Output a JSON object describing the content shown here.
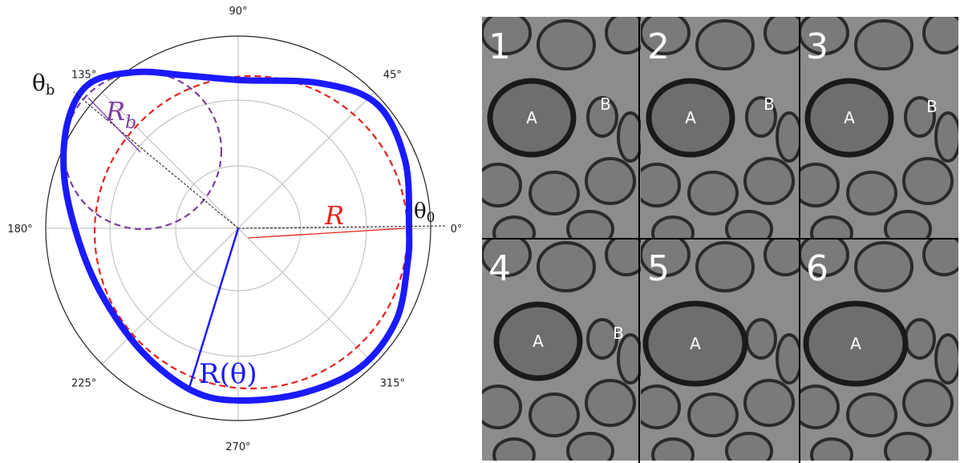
{
  "polar_plot": {
    "angle_labels": [
      "0°",
      "45°",
      "90°",
      "135°",
      "180°",
      "225°",
      "270°",
      "315°"
    ],
    "annotations": {
      "theta_b": "θ",
      "theta_b_sub": "b",
      "r_b": "R",
      "r_b_sub": "b",
      "r": "R",
      "theta_0": "θ",
      "theta_0_sub": "0",
      "r_theta": "R(θ)"
    }
  },
  "micrographs": {
    "panels": [
      {
        "number": "1",
        "labels": [
          "A",
          "B"
        ]
      },
      {
        "number": "2",
        "labels": [
          "A",
          "B"
        ]
      },
      {
        "number": "3",
        "labels": [
          "A",
          "B"
        ]
      },
      {
        "number": "4",
        "labels": [
          "A",
          "B"
        ]
      },
      {
        "number": "5",
        "labels": [
          "A"
        ]
      },
      {
        "number": "6",
        "labels": [
          "A"
        ]
      }
    ]
  }
}
